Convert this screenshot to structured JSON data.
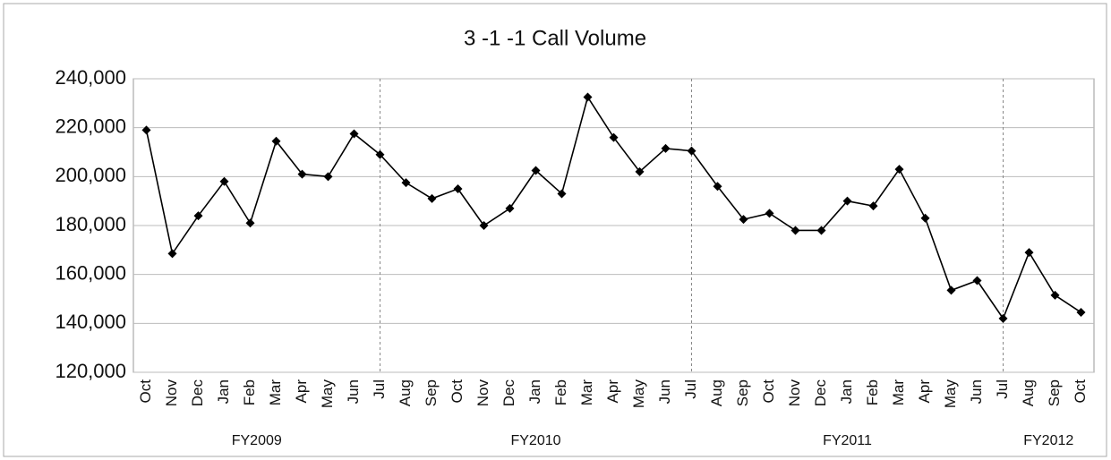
{
  "chart_data": {
    "type": "line",
    "title": "3 -1 -1 Call Volume",
    "categories": [
      "Oct",
      "Nov",
      "Dec",
      "Jan",
      "Feb",
      "Mar",
      "Apr",
      "May",
      "Jun",
      "Jul",
      "Aug",
      "Sep",
      "Oct",
      "Nov",
      "Dec",
      "Jan",
      "Feb",
      "Mar",
      "Apr",
      "May",
      "Jun",
      "Jul",
      "Aug",
      "Sep",
      "Oct",
      "Nov",
      "Dec",
      "Jan",
      "Feb",
      "Mar",
      "Apr",
      "May",
      "Jun",
      "Jul",
      "Aug",
      "Sep",
      "Oct"
    ],
    "series": [
      {
        "name": "Call Volume",
        "color": "#000000",
        "values": [
          219000,
          168500,
          184000,
          198000,
          181000,
          214500,
          201000,
          200000,
          217500,
          209000,
          197500,
          191000,
          195000,
          180000,
          187000,
          202500,
          193000,
          232500,
          216000,
          202000,
          211500,
          210500,
          196000,
          182500,
          185000,
          178000,
          178000,
          190000,
          188000,
          203000,
          183000,
          153500,
          157500,
          142000,
          169000,
          151500,
          144500
        ]
      }
    ],
    "groups": [
      "FY2009",
      "FY2010",
      "FY2011",
      "FY2012"
    ],
    "ylim": [
      120000,
      240000
    ],
    "yticks": [
      {
        "value": 120000,
        "label": "120,000"
      },
      {
        "value": 140000,
        "label": "140,000"
      },
      {
        "value": 160000,
        "label": "160,000"
      },
      {
        "value": 180000,
        "label": "180,000"
      },
      {
        "value": 200000,
        "label": "200,000"
      },
      {
        "value": 220000,
        "label": "220,000"
      },
      {
        "value": 240000,
        "label": "240,000"
      }
    ],
    "grid": true
  }
}
